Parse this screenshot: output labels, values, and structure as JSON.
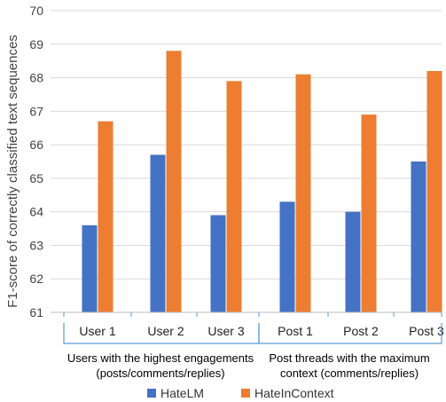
{
  "chart_data": {
    "type": "bar",
    "ylabel": "F1-score of correctly classified text sequences",
    "ylim": [
      61,
      70
    ],
    "yticks": [
      61,
      62,
      63,
      64,
      65,
      66,
      67,
      68,
      69,
      70
    ],
    "grid": true,
    "legend_position": "bottom",
    "categories": [
      "User 1",
      "User 2",
      "User 3",
      "Post 1",
      "Post 2",
      "Post 3"
    ],
    "groups": [
      {
        "lines": [
          "Users with the highest engagements",
          "(posts/comments/replies)"
        ],
        "categories": [
          "User 1",
          "User 2",
          "User 3"
        ]
      },
      {
        "lines": [
          "Post threads with the maximum",
          "context (comments/replies)"
        ],
        "categories": [
          "Post 1",
          "Post 2",
          "Post 3"
        ]
      }
    ],
    "series": [
      {
        "name": "HateLM",
        "color": "#4472C4",
        "values": [
          63.6,
          65.7,
          63.9,
          64.3,
          64.0,
          65.5
        ]
      },
      {
        "name": "HateInContext",
        "color": "#ED7D31",
        "values": [
          66.7,
          68.8,
          67.9,
          68.1,
          66.9,
          68.2
        ]
      }
    ]
  }
}
